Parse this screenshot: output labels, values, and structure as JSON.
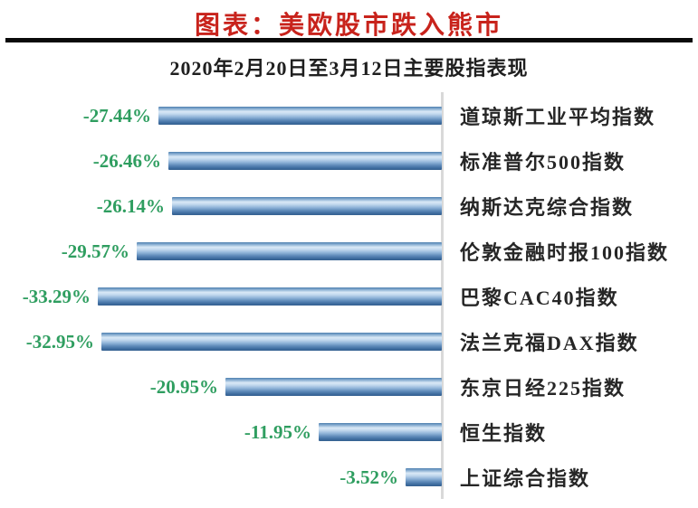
{
  "page": {
    "title": "图表：美欧股市跌入熊市",
    "subtitle": "2020年2月20日至3月12日主要股指表现"
  },
  "colors": {
    "title_red": "#c8231c",
    "value_green": "#2f9e60",
    "bar_blue_main": "#4f81bd",
    "bar_blue_light": "#d9e8f6",
    "bar_blue_dark": "#35618f",
    "axis_gray": "#d9d9d9",
    "text_black": "#1f1f1f"
  },
  "chart_data": {
    "type": "bar",
    "orientation": "horizontal",
    "title": "2020年2月20日至3月12日主要股指表现",
    "categories": [
      "道琼斯工业平均指数",
      "标准普尔500指数",
      "纳斯达克综合指数",
      "伦敦金融时报100指数",
      "巴黎CAC40指数",
      "法兰克福DAX指数",
      "东京日经225指数",
      "恒生指数",
      "上证综合指数"
    ],
    "values": [
      -27.44,
      -26.46,
      -26.14,
      -29.57,
      -33.29,
      -32.95,
      -20.95,
      -11.95,
      -3.52
    ],
    "value_labels": [
      "-27.44%",
      "-26.46%",
      "-26.14%",
      "-29.57%",
      "-33.29%",
      "-32.95%",
      "-20.95%",
      "-11.95%",
      "-3.52%"
    ],
    "xlim": [
      -40,
      0
    ],
    "grid": false,
    "legend": "none",
    "value_label_position": "left-of-bar",
    "category_label_position": "right-of-axis",
    "bar_style": "blue-gradient-cylinder"
  }
}
